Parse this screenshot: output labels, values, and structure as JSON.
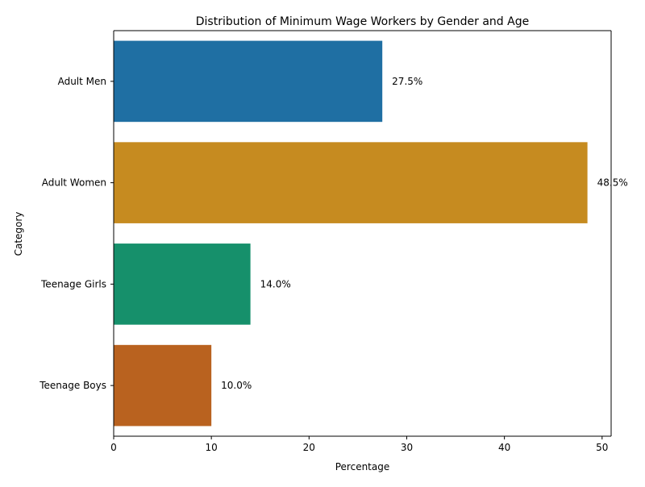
{
  "chart_data": {
    "type": "bar",
    "orientation": "horizontal",
    "title": "Distribution of Minimum Wage Workers by Gender and Age",
    "xlabel": "Percentage",
    "ylabel": "Category",
    "categories": [
      "Adult Men",
      "Adult Women",
      "Teenage Girls",
      "Teenage Boys"
    ],
    "values": [
      27.5,
      48.5,
      14.0,
      10.0
    ],
    "value_labels": [
      "27.5%",
      "48.5%",
      "14.0%",
      "10.0%"
    ],
    "colors": [
      "#1f6fa3",
      "#c68b20",
      "#16906b",
      "#b9621f"
    ],
    "xlim": [
      0,
      50.925
    ],
    "xticks": [
      0,
      10,
      20,
      30,
      40,
      50
    ],
    "xtick_labels": [
      "0",
      "10",
      "20",
      "30",
      "40",
      "50"
    ],
    "grid": false,
    "legend": false
  }
}
